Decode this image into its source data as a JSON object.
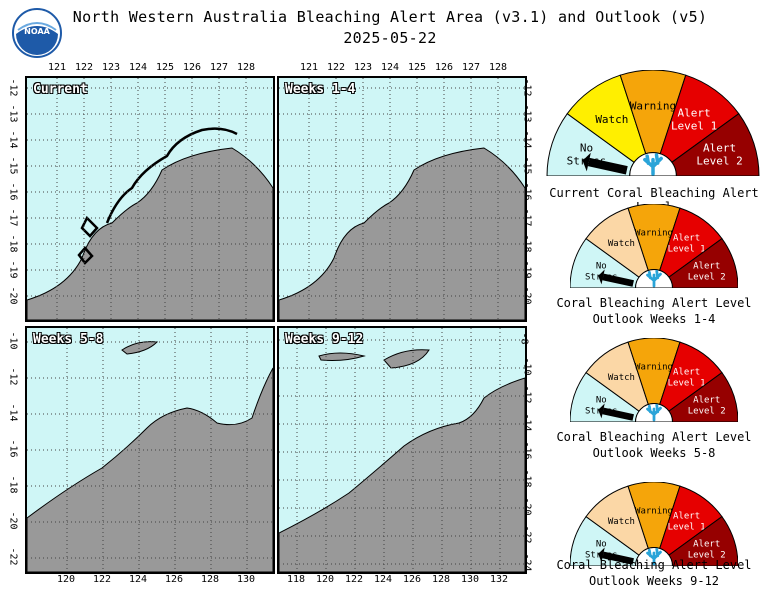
{
  "title": "North Western Australia Bleaching Alert Area (v3.1) and Outlook (v5)",
  "date": "2025-05-22",
  "logo_text": "NOAA",
  "panels": [
    {
      "label": "Current"
    },
    {
      "label": "Weeks 1-4"
    },
    {
      "label": "Weeks 5-8"
    },
    {
      "label": "Weeks 9-12"
    }
  ],
  "top_lon_ticks": [
    "121",
    "122",
    "123",
    "124",
    "125",
    "126",
    "127",
    "128"
  ],
  "top_lon_ticks_right": [
    "121",
    "122",
    "123",
    "124",
    "125",
    "126",
    "127",
    "128"
  ],
  "bottom_lon_ticks_left": [
    "120",
    "122",
    "124",
    "126",
    "128",
    "130"
  ],
  "bottom_lon_ticks_right": [
    "118",
    "120",
    "122",
    "124",
    "126",
    "128",
    "130",
    "132"
  ],
  "top_lat_ticks": [
    "-12",
    "-13",
    "-14",
    "-15",
    "-16",
    "-17",
    "-18",
    "-19",
    "-20"
  ],
  "bottom_lat_ticks": [
    "-10",
    "-12",
    "-14",
    "-16",
    "-18",
    "-20",
    "-22"
  ],
  "bottom_lat_ticks_right": [
    "-8",
    "-10",
    "-12",
    "-14",
    "-16",
    "-18",
    "-20",
    "-22",
    "-24"
  ],
  "gauge_levels": [
    "No Stress",
    "Watch",
    "Warning",
    "Alert Level 1",
    "Alert Level 2"
  ],
  "gauge_colors": {
    "current": [
      "#cff6f6",
      "#ffef00",
      "#f5a50a",
      "#e60000",
      "#960000"
    ],
    "outlook": [
      "#cff6f6",
      "#fbd7a6",
      "#f5a50a",
      "#e60000",
      "#960000"
    ]
  },
  "gauges": [
    {
      "caption1": "Current Coral Bleaching Alert Level",
      "caption2": "",
      "level": "No Stress"
    },
    {
      "caption1": "Coral Bleaching Alert Level",
      "caption2": "Outlook Weeks 1-4",
      "level": "No Stress"
    },
    {
      "caption1": "Coral Bleaching Alert Level",
      "caption2": "Outlook Weeks 5-8",
      "level": "No Stress"
    },
    {
      "caption1": "Coral Bleaching Alert Level",
      "caption2": "Outlook Weeks 9-12",
      "level": "No Stress"
    }
  ],
  "colors": {
    "ocean": "#cff6f6",
    "land": "#999999",
    "coast": "#000000"
  },
  "icons": [
    "noaa-logo-icon",
    "coral-icon",
    "gauge-needle-icon"
  ]
}
